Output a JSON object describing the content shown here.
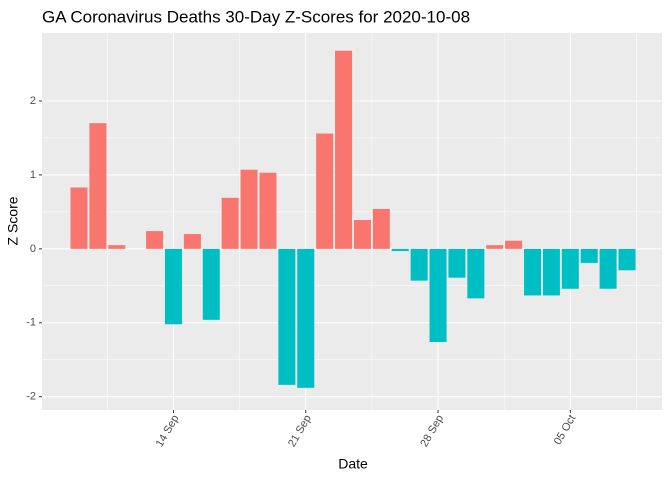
{
  "chart_data": {
    "type": "bar",
    "title": "GA Coronavirus Deaths 30-Day Z-Scores for 2020-10-08",
    "x_label": "Date",
    "y_label": "Z Score",
    "categories": [
      null,
      null,
      null,
      null,
      null,
      "14 Sep",
      null,
      null,
      null,
      null,
      null,
      null,
      "21 Sep",
      null,
      null,
      null,
      null,
      null,
      null,
      "28 Sep",
      null,
      null,
      null,
      null,
      null,
      null,
      "05 Oct",
      null,
      null,
      null
    ],
    "values": [
      0.83,
      1.7,
      0.05,
      0,
      0.24,
      -1.02,
      0.2,
      -0.96,
      0.69,
      1.07,
      1.03,
      -1.84,
      -1.88,
      1.56,
      2.68,
      0.39,
      0.54,
      -0.03,
      -0.43,
      -1.26,
      -0.39,
      -0.67,
      0.05,
      0.11,
      -0.63,
      -0.63,
      -0.54,
      -0.19,
      -0.54,
      -0.29
    ],
    "colors": {
      "positive": "#F8766D",
      "negative": "#00BFC4"
    },
    "ylim": [
      -2.18,
      2.92
    ],
    "yticks": [
      -2,
      -1,
      0,
      1,
      2
    ],
    "grid": true
  }
}
